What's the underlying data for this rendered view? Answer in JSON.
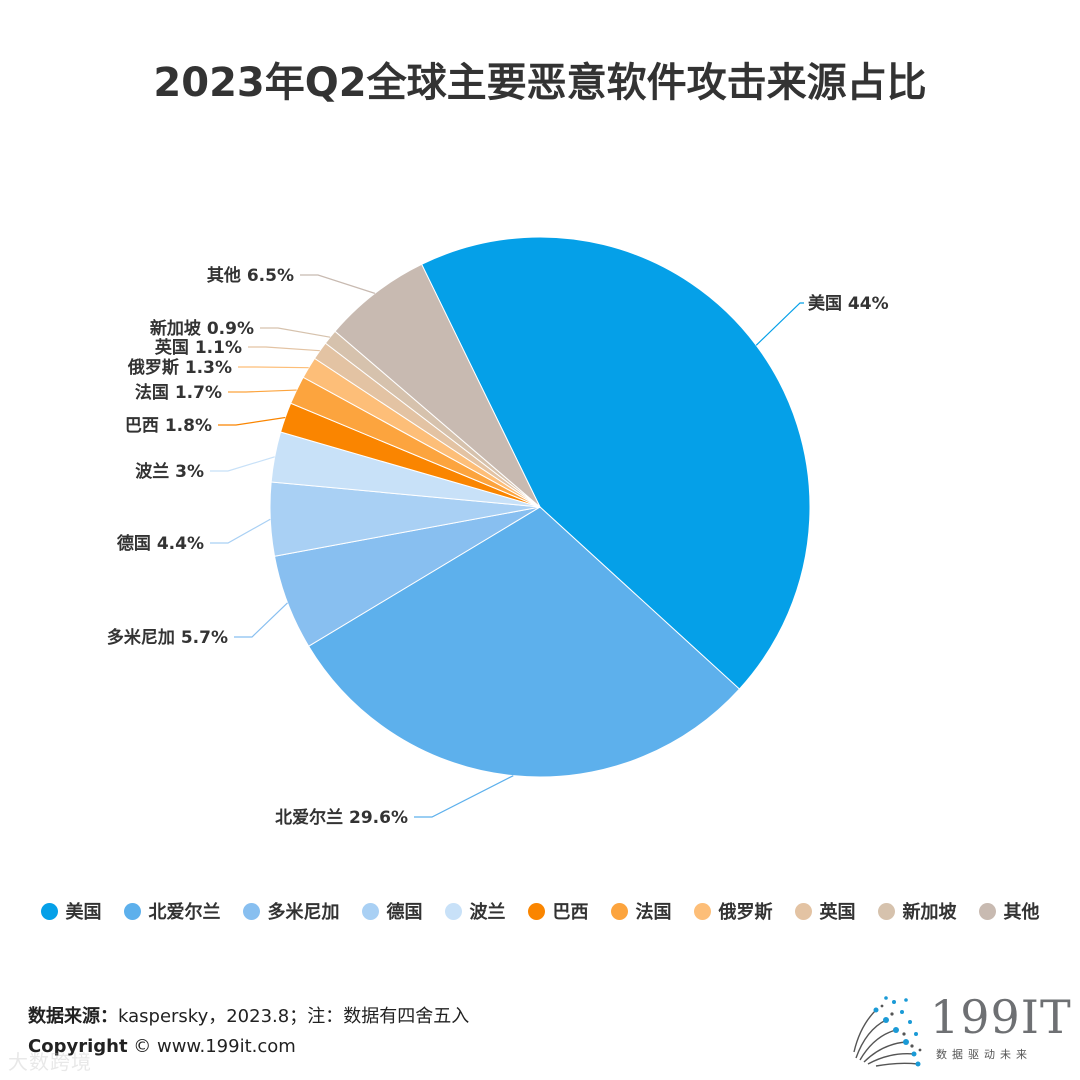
{
  "title": "2023年Q2全球主要恶意软件攻击来源占比",
  "chart_data": {
    "type": "pie",
    "title": "2023年Q2全球主要恶意软件攻击来源占比",
    "legend_position": "bottom",
    "slices": [
      {
        "label": "美国",
        "value": 44,
        "display": "美国 44%",
        "color": "#05a0e8"
      },
      {
        "label": "北爱尔兰",
        "value": 29.6,
        "display": "北爱尔兰 29.6%",
        "color": "#5db0ec"
      },
      {
        "label": "多米尼加",
        "value": 5.7,
        "display": "多米尼加 5.7%",
        "color": "#88bff0"
      },
      {
        "label": "德国",
        "value": 4.4,
        "display": "德国 4.4%",
        "color": "#a9d0f4"
      },
      {
        "label": "波兰",
        "value": 3,
        "display": "波兰 3%",
        "color": "#c8e1f8"
      },
      {
        "label": "巴西",
        "value": 1.8,
        "display": "巴西 1.8%",
        "color": "#fa8500"
      },
      {
        "label": "法国",
        "value": 1.7,
        "display": "法国 1.7%",
        "color": "#fca43e"
      },
      {
        "label": "俄罗斯",
        "value": 1.3,
        "display": "俄罗斯 1.3%",
        "color": "#fdbe78"
      },
      {
        "label": "英国",
        "value": 1.1,
        "display": "英国 1.1%",
        "color": "#e3c3a3"
      },
      {
        "label": "新加坡",
        "value": 0.9,
        "display": "新加坡 0.9%",
        "color": "#d6c2ad"
      },
      {
        "label": "其他",
        "value": 6.5,
        "display": "其他 6.5%",
        "color": "#c8bab1"
      }
    ]
  },
  "legend": [
    {
      "label": "美国",
      "color": "#05a0e8"
    },
    {
      "label": "北爱尔兰",
      "color": "#5db0ec"
    },
    {
      "label": "多米尼加",
      "color": "#88bff0"
    },
    {
      "label": "德国",
      "color": "#a9d0f4"
    },
    {
      "label": "波兰",
      "color": "#c8e1f8"
    },
    {
      "label": "巴西",
      "color": "#fa8500"
    },
    {
      "label": "法国",
      "color": "#fca43e"
    },
    {
      "label": "俄罗斯",
      "color": "#fdbe78"
    },
    {
      "label": "英国",
      "color": "#e3c3a3"
    },
    {
      "label": "新加坡",
      "color": "#d6c2ad"
    },
    {
      "label": "其他",
      "color": "#c8bab1"
    }
  ],
  "footer": {
    "source_label": "数据来源：",
    "source_text": "kaspersky，2023.8；注：数据有四舍五入",
    "copyright_label": "Copyright",
    "copyright_text": " © www.199it.com"
  },
  "watermark": "大数跨境",
  "logo": {
    "name": "199IT",
    "tagline": "数据驱动未来",
    "accent_color": "#1a9ad6"
  }
}
